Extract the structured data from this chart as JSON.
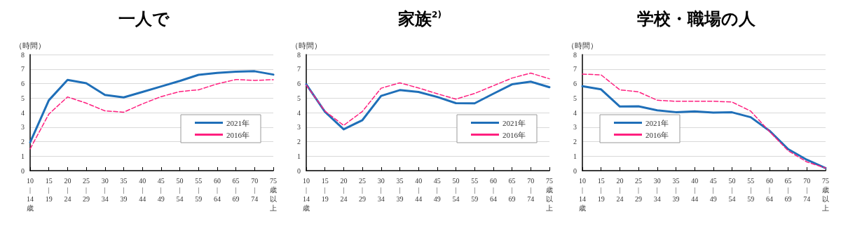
{
  "chart_data": [
    {
      "type": "line",
      "title": "一人で",
      "ylabel": "（時間）",
      "categories": [
        "10|14歳",
        "15|19",
        "20|24",
        "25|29",
        "30|34",
        "35|39",
        "40|44",
        "45|49",
        "50|54",
        "55|59",
        "60|64",
        "65|69",
        "70|74",
        "75歳以上"
      ],
      "ylim": [
        0,
        8
      ],
      "yticks": [
        0,
        1,
        2,
        3,
        4,
        5,
        6,
        7,
        8
      ],
      "grid": "y",
      "legend": "bottom right",
      "marker": "none",
      "series": [
        {
          "name": "2021年",
          "color": "#1f6fb8",
          "line_style": "solid",
          "values": [
            1.95,
            4.85,
            6.25,
            6.02,
            5.22,
            5.05,
            5.42,
            5.8,
            6.18,
            6.6,
            6.73,
            6.82,
            6.85,
            6.62
          ]
        },
        {
          "name": "2016年",
          "color": "#ff1f7f",
          "line_style": "dashed",
          "values": [
            1.5,
            3.9,
            5.08,
            4.65,
            4.12,
            4.03,
            4.6,
            5.1,
            5.45,
            5.57,
            5.98,
            6.28,
            6.22,
            6.27
          ]
        }
      ]
    },
    {
      "type": "line",
      "title": "家族$^{2)}$",
      "ylabel": "（時間）",
      "categories": [
        "10|14歳",
        "15|19",
        "20|24",
        "25|29",
        "30|34",
        "35|39",
        "40|44",
        "45|49",
        "50|54",
        "55|59",
        "60|64",
        "65|69",
        "70|74",
        "75歳以上"
      ],
      "ylim": [
        0,
        8
      ],
      "yticks": [
        0,
        1,
        2,
        3,
        4,
        5,
        6,
        7,
        8
      ],
      "grid": "y",
      "legend": "bottom right",
      "marker": "none",
      "series": [
        {
          "name": "2021年",
          "color": "#1f6fb8",
          "line_style": "solid",
          "values": [
            5.95,
            4.05,
            2.85,
            3.48,
            5.15,
            5.55,
            5.42,
            5.08,
            4.65,
            4.64,
            5.3,
            5.95,
            6.13,
            5.75
          ]
        },
        {
          "name": "2016年",
          "color": "#ff1f7f",
          "line_style": "dashed",
          "values": [
            5.9,
            4.1,
            3.12,
            4.08,
            5.68,
            6.05,
            5.7,
            5.3,
            4.93,
            5.32,
            5.85,
            6.38,
            6.72,
            6.33
          ]
        }
      ]
    },
    {
      "type": "line",
      "title": "学校・職場の人",
      "ylabel": "（時間）",
      "categories": [
        "10|14歳",
        "15|19",
        "20|24",
        "25|29",
        "30|34",
        "35|39",
        "40|44",
        "45|49",
        "50|54",
        "55|59",
        "60|64",
        "65|69",
        "70|74",
        "75歳以上"
      ],
      "ylim": [
        0,
        8
      ],
      "yticks": [
        0,
        1,
        2,
        3,
        4,
        5,
        6,
        7,
        8
      ],
      "grid": "y",
      "legend": "bottom left",
      "marker": "none",
      "series": [
        {
          "name": "2021年",
          "color": "#1f6fb8",
          "line_style": "solid",
          "values": [
            5.82,
            5.6,
            4.42,
            4.43,
            4.16,
            4.03,
            4.08,
            4.0,
            4.02,
            3.68,
            2.75,
            1.48,
            0.75,
            0.17
          ]
        },
        {
          "name": "2016年",
          "color": "#ff1f7f",
          "line_style": "dashed",
          "values": [
            6.65,
            6.6,
            5.57,
            5.43,
            4.85,
            4.78,
            4.78,
            4.78,
            4.73,
            4.1,
            2.7,
            1.37,
            0.6,
            0.18
          ]
        }
      ]
    }
  ]
}
